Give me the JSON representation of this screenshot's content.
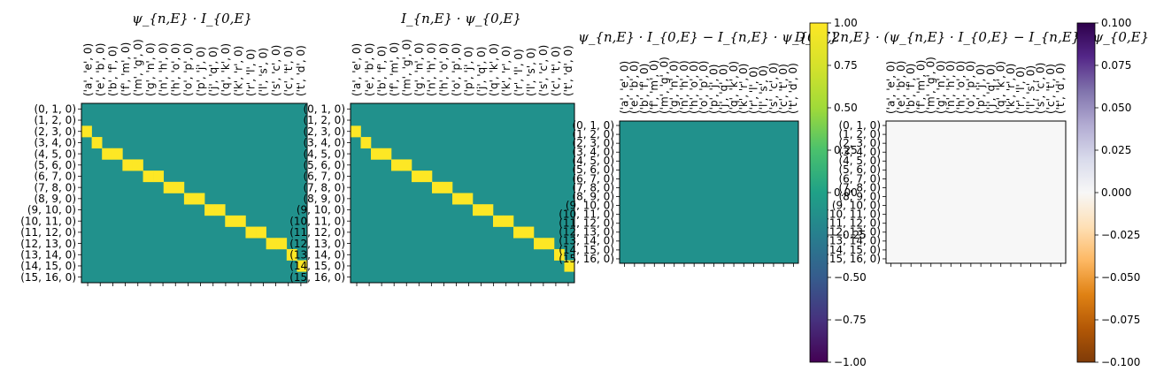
{
  "chart_data": [
    {
      "type": "heatmap",
      "title": "ψ_{n,E} · I_{0,E}",
      "x_tick_labels": [
        "('a', 'e', 0)",
        "('e', 'b', 0)",
        "('b', 'f', 0)",
        "('f', 'm', 0)",
        "('m', 'g', 0)",
        "('g', 'n', 0)",
        "('n', 'h', 0)",
        "('h', 'o', 0)",
        "('o', 'p', 0)",
        "('p', 'j', 0)",
        "('j', 'q', 0)",
        "('q', 'k', 0)",
        "('k', 'r', 0)",
        "('r', 'l', 0)",
        "('l', 's', 0)",
        "('s', 'c', 0)",
        "('c', 't', 0)",
        "('t', 'd', 0)"
      ],
      "y_tick_labels": [
        "(0, 1, 0)",
        "(1, 2, 0)",
        "(2, 3, 0)",
        "(3, 4, 0)",
        "(4, 5, 0)",
        "(5, 6, 0)",
        "(6, 7, 0)",
        "(7, 8, 0)",
        "(8, 9, 0)",
        "(9, 10, 0)",
        "(10, 11, 0)",
        "(11, 12, 0)",
        "(12, 13, 0)",
        "(13, 14, 0)",
        "(14, 15, 0)",
        "(15, 16, 0)"
      ],
      "colormap": "viridis",
      "vlim": [
        -1,
        1
      ],
      "nonzero_cells": [
        [
          2,
          0,
          1
        ],
        [
          3,
          1,
          1
        ],
        [
          4,
          2,
          1
        ],
        [
          4,
          3,
          1
        ],
        [
          5,
          4,
          1
        ],
        [
          5,
          5,
          1
        ],
        [
          6,
          6,
          1
        ],
        [
          6,
          7,
          1
        ],
        [
          7,
          8,
          1
        ],
        [
          7,
          9,
          1
        ],
        [
          8,
          10,
          1
        ],
        [
          8,
          11,
          1
        ],
        [
          9,
          12,
          1
        ],
        [
          9,
          13,
          1
        ],
        [
          10,
          14,
          1
        ],
        [
          10,
          15,
          1
        ],
        [
          11,
          16,
          1
        ],
        [
          11,
          17,
          1
        ],
        [
          12,
          18,
          1
        ],
        [
          12,
          19,
          1
        ],
        [
          13,
          20,
          1
        ],
        [
          14,
          21,
          1
        ]
      ],
      "default_value": 0
    },
    {
      "type": "heatmap",
      "title": "I_{n,E} · ψ_{0,E}",
      "x_tick_labels": [
        "('a', 'e', 0)",
        "('e', 'b', 0)",
        "('b', 'f', 0)",
        "('f', 'm', 0)",
        "('m', 'g', 0)",
        "('g', 'n', 0)",
        "('n', 'h', 0)",
        "('h', 'o', 0)",
        "('o', 'p', 0)",
        "('p', 'j', 0)",
        "('j', 'q', 0)",
        "('q', 'k', 0)",
        "('k', 'r', 0)",
        "('r', 'l', 0)",
        "('l', 's', 0)",
        "('s', 'c', 0)",
        "('c', 't', 0)",
        "('t', 'd', 0)"
      ],
      "y_tick_labels": [
        "(0, 1, 0)",
        "(1, 2, 0)",
        "(2, 3, 0)",
        "(3, 4, 0)",
        "(4, 5, 0)",
        "(5, 6, 0)",
        "(6, 7, 0)",
        "(7, 8, 0)",
        "(8, 9, 0)",
        "(9, 10, 0)",
        "(10, 11, 0)",
        "(11, 12, 0)",
        "(12, 13, 0)",
        "(13, 14, 0)",
        "(14, 15, 0)",
        "(15, 16, 0)"
      ],
      "colormap": "viridis",
      "vlim": [
        -1,
        1
      ],
      "nonzero_cells": [
        [
          2,
          0,
          1
        ],
        [
          3,
          1,
          1
        ],
        [
          4,
          2,
          1
        ],
        [
          4,
          3,
          1
        ],
        [
          5,
          4,
          1
        ],
        [
          5,
          5,
          1
        ],
        [
          6,
          6,
          1
        ],
        [
          6,
          7,
          1
        ],
        [
          7,
          8,
          1
        ],
        [
          7,
          9,
          1
        ],
        [
          8,
          10,
          1
        ],
        [
          8,
          11,
          1
        ],
        [
          9,
          12,
          1
        ],
        [
          9,
          13,
          1
        ],
        [
          10,
          14,
          1
        ],
        [
          10,
          15,
          1
        ],
        [
          11,
          16,
          1
        ],
        [
          11,
          17,
          1
        ],
        [
          12,
          18,
          1
        ],
        [
          12,
          19,
          1
        ],
        [
          13,
          20,
          1
        ],
        [
          14,
          21,
          1
        ]
      ],
      "default_value": 0
    },
    {
      "type": "heatmap",
      "title": "ψ_{n,E} · I_{0,E} − I_{n,E} · ψ_{0,E}",
      "x_tick_labels": [
        "('a', 'e', 0)",
        "('e', 'b', 0)",
        "('b', 'f', 0)",
        "('f', 'm', 0)",
        "('m', 'g', 0)",
        "('g', 'n', 0)",
        "('n', 'h', 0)",
        "('h', 'o', 0)",
        "('o', 'p', 0)",
        "('p', 'j', 0)",
        "('j', 'q', 0)",
        "('q', 'k', 0)",
        "('k', 'r', 0)",
        "('r', 'l', 0)",
        "('l', 's', 0)",
        "('s', 'c', 0)",
        "('c', 't', 0)",
        "('t', 'd', 0)"
      ],
      "y_tick_labels": [
        "(0, 1, 0)",
        "(1, 2, 0)",
        "(2, 3, 0)",
        "(3, 4, 0)",
        "(4, 5, 0)",
        "(5, 6, 0)",
        "(6, 7, 0)",
        "(7, 8, 0)",
        "(8, 9, 0)",
        "(9, 10, 0)",
        "(10, 11, 0)",
        "(11, 12, 0)",
        "(12, 13, 0)",
        "(13, 14, 0)",
        "(14, 15, 0)",
        "(15, 16, 0)"
      ],
      "colormap": "viridis",
      "vlim": [
        -1,
        1
      ],
      "nonzero_cells": [],
      "default_value": 0,
      "colorbar": {
        "ticks": [
          1.0,
          0.75,
          0.5,
          0.25,
          0.0,
          -0.25,
          -0.5,
          -0.75,
          -1.0
        ],
        "tick_labels": [
          "1.00",
          "0.75",
          "0.50",
          "0.25",
          "0.00",
          "−0.25",
          "−0.50",
          "−0.75",
          "−1.00"
        ]
      }
    },
    {
      "type": "heatmap",
      "title": "D_{F,2n,E} · (ψ_{n,E} · I_{0,E} − I_{n,E} · ψ_{0,E}",
      "x_tick_labels": [
        "('a', 'e', 0)",
        "('e', 'b', 0)",
        "('b', 'f', 0)",
        "('f', 'm', 0)",
        "('m', 'g', 0)",
        "('g', 'n', 0)",
        "('n', 'h', 0)",
        "('h', 'o', 0)",
        "('o', 'p', 0)",
        "('p', 'j', 0)",
        "('j', 'q', 0)",
        "('q', 'k', 0)",
        "('k', 'r', 0)",
        "('r', 'l', 0)",
        "('l', 's', 0)",
        "('s', 'c', 0)",
        "('c', 't', 0)",
        "('t', 'd', 0)"
      ],
      "y_tick_labels": [
        "(0, 1, 0)",
        "(1, 2, 0)",
        "(2, 3, 0)",
        "(3, 4, 0)",
        "(4, 5, 0)",
        "(5, 6, 0)",
        "(6, 7, 0)",
        "(7, 8, 0)",
        "(8, 9, 0)",
        "(9, 10, 0)",
        "(10, 11, 0)",
        "(11, 12, 0)",
        "(12, 13, 0)",
        "(13, 14, 0)",
        "(14, 15, 0)",
        "(15, 16, 0)"
      ],
      "colormap": "PuOr",
      "vlim": [
        -0.1,
        0.1
      ],
      "nonzero_cells": [],
      "default_value": 0,
      "colorbar": {
        "ticks": [
          0.1,
          0.075,
          0.05,
          0.025,
          0.0,
          -0.025,
          -0.05,
          -0.075,
          -0.1
        ],
        "tick_labels": [
          "0.100",
          "0.075",
          "0.050",
          "0.025",
          "0.000",
          "−0.025",
          "−0.050",
          "−0.075",
          "−0.100"
        ]
      }
    }
  ],
  "colors": {
    "viridis_zero": "#21918c",
    "viridis_one": "#fde725",
    "puor_zero": "#f7f7f7"
  }
}
